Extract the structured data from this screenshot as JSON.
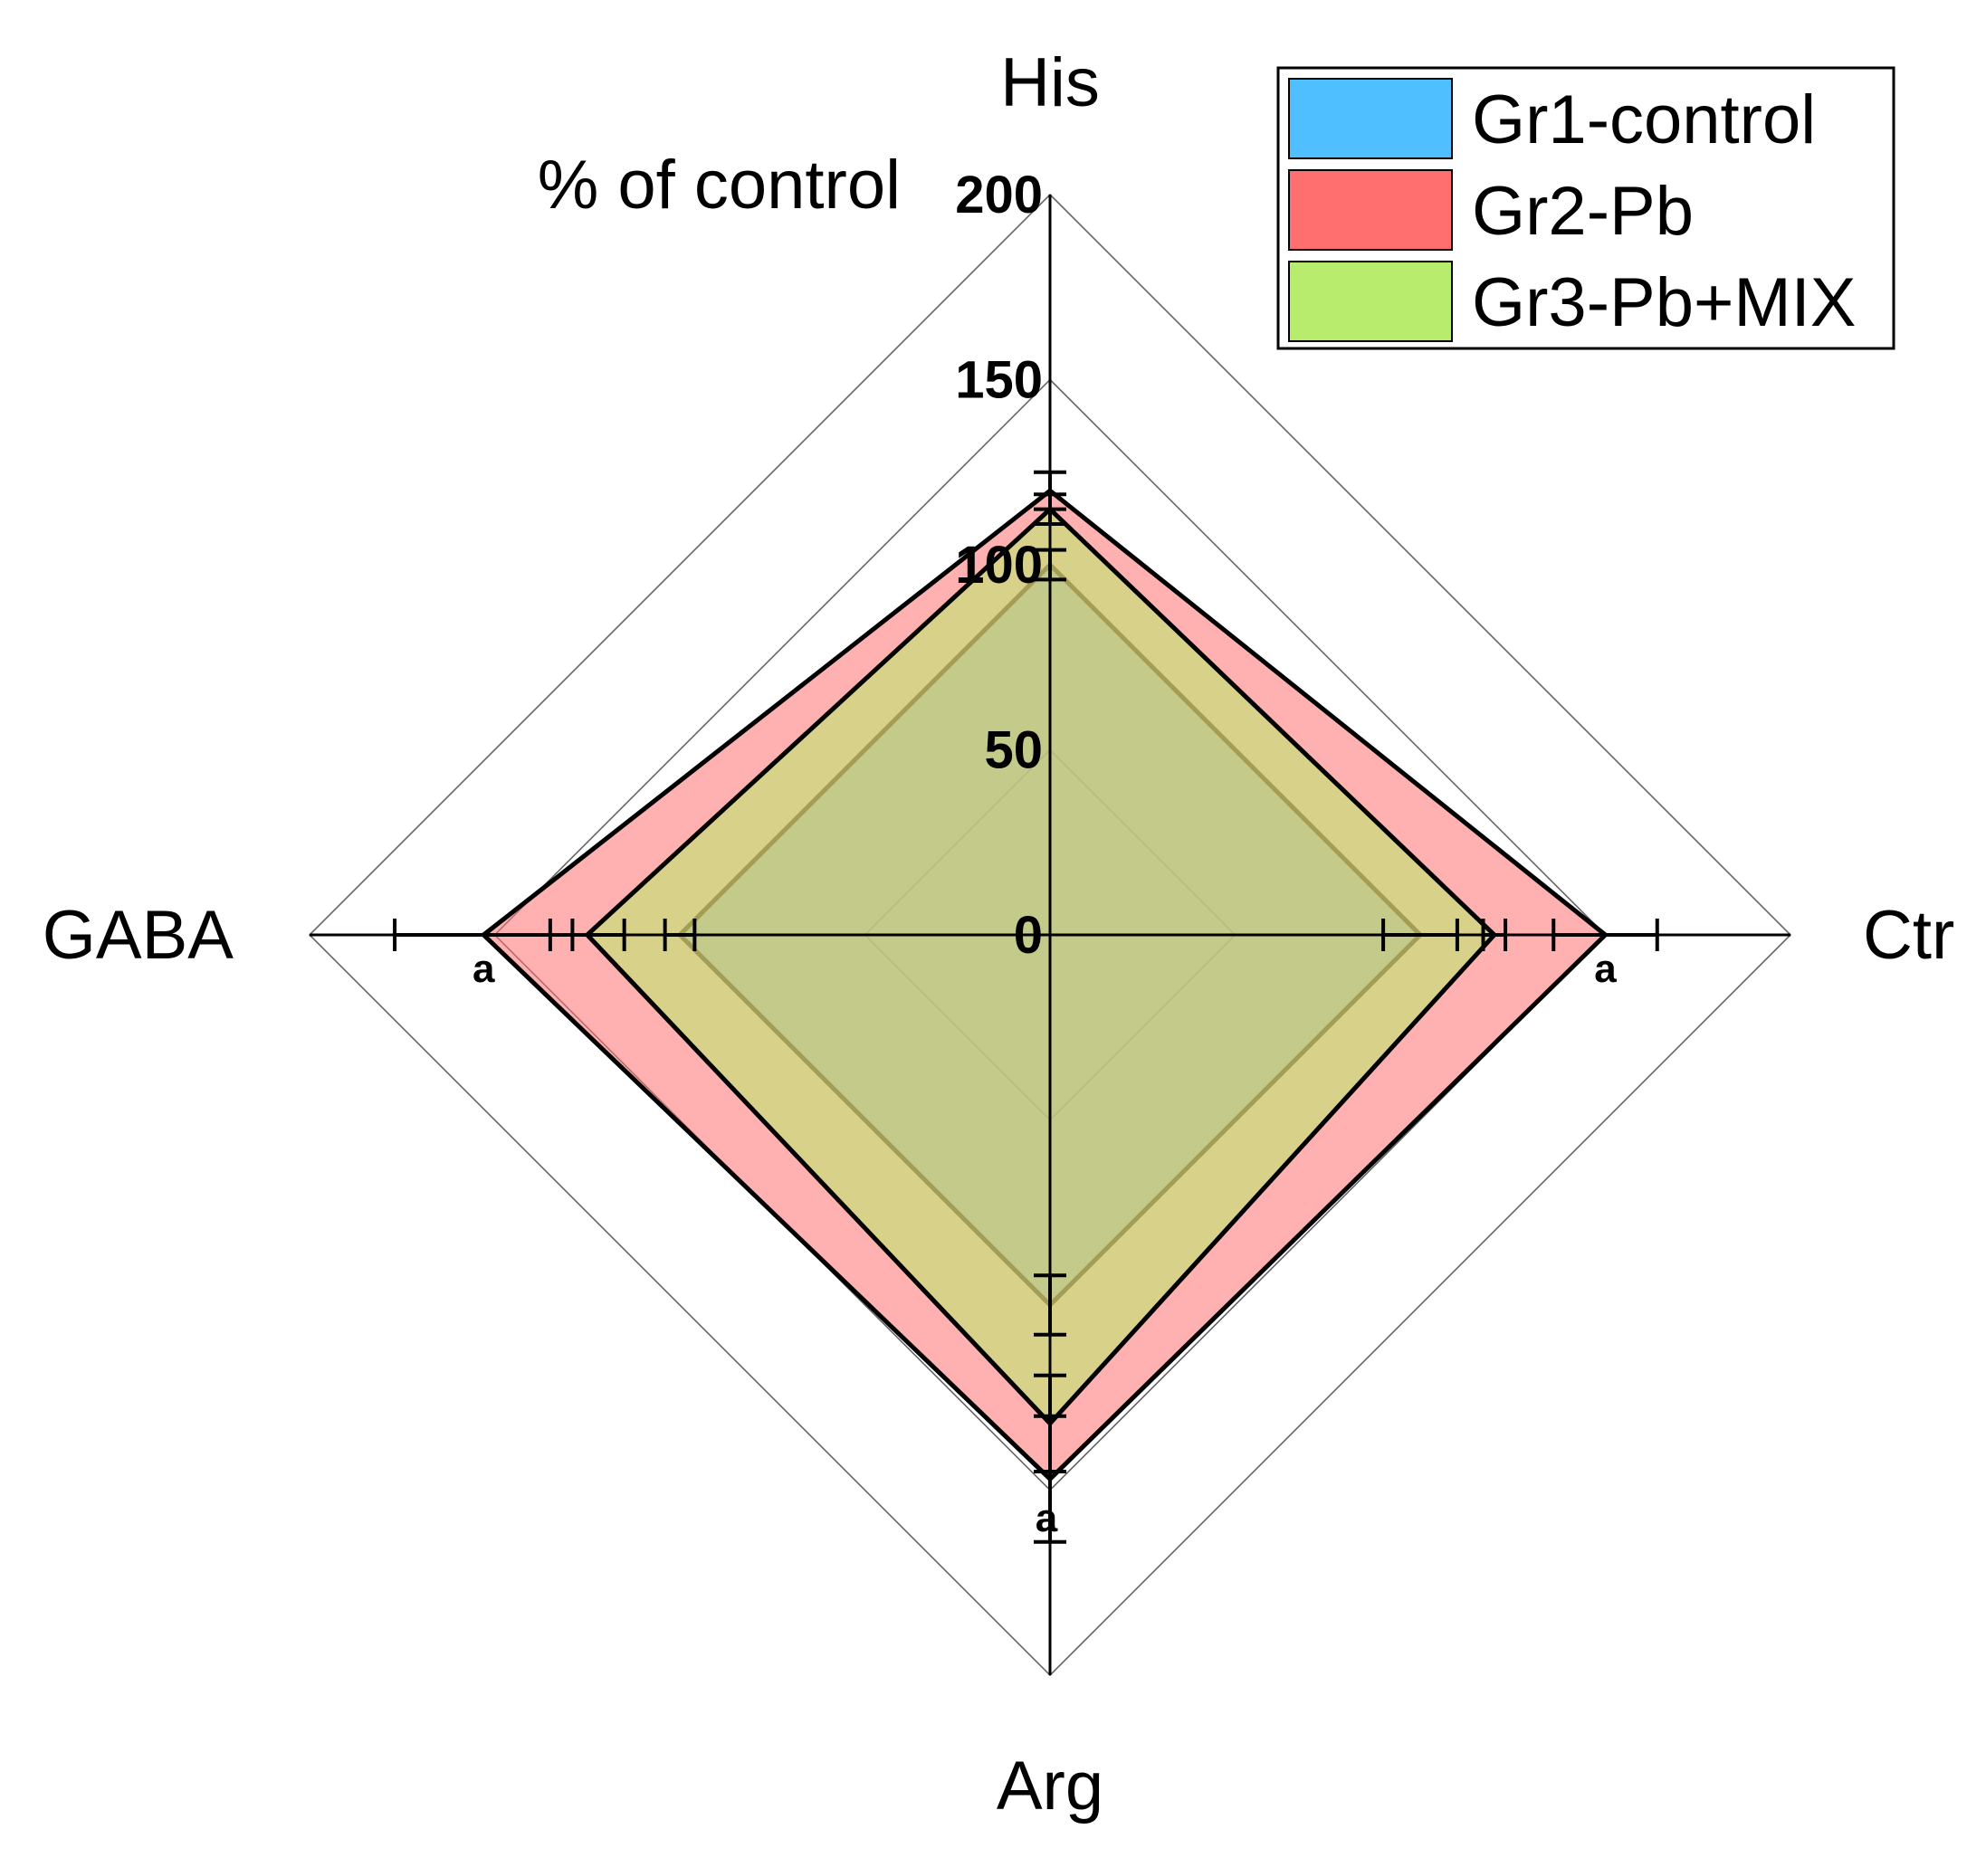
{
  "chart_data": {
    "type": "radar",
    "title": "",
    "ylabel": "% of control",
    "axes": [
      "His",
      "Ctr",
      "Arg",
      "GABA"
    ],
    "rlim": [
      0,
      200
    ],
    "ticks": [
      0,
      50,
      100,
      150,
      200
    ],
    "tick_labels": [
      "0",
      "50",
      "100",
      "150",
      "200"
    ],
    "series": [
      {
        "name": "Gr1-control",
        "color": "#4FBFFF",
        "fill": "#7FC9C8",
        "values": [
          100,
          100,
          100,
          100
        ],
        "errors": [
          4,
          10,
          8,
          4
        ]
      },
      {
        "name": "Gr2-Pb",
        "color": "#FF6F6F",
        "fill": "#FBB3B3",
        "values": [
          120,
          150,
          147,
          153
        ],
        "errors": [
          5,
          14,
          17,
          24
        ]
      },
      {
        "name": "Gr3-Pb+MIX",
        "color": "#B8EC6C",
        "fill": "#B9DC98",
        "values": [
          115,
          120,
          132,
          125
        ],
        "errors": [
          4,
          3,
          13,
          10
        ]
      }
    ],
    "significance": [
      {
        "axis": "Ctr",
        "label": "a"
      },
      {
        "axis": "Arg",
        "label": "a"
      },
      {
        "axis": "GABA",
        "label": "a"
      }
    ],
    "legend_position": "top-right"
  }
}
